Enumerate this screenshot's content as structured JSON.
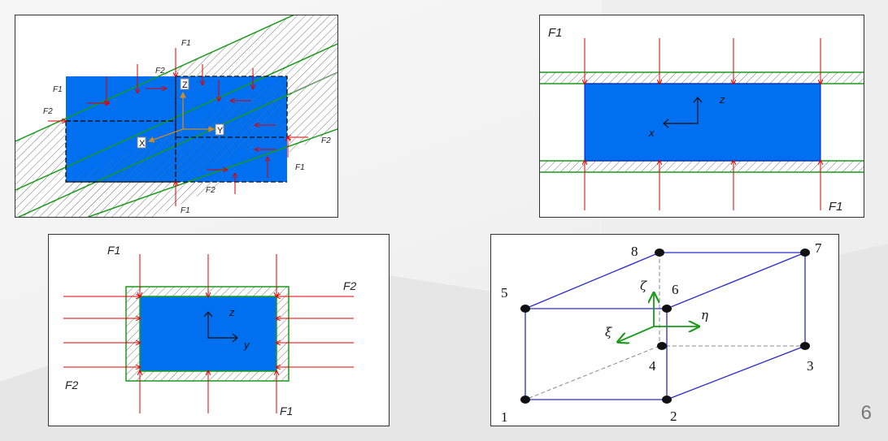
{
  "panel1": {
    "labels": {
      "f1_top": "F1",
      "f2_top": "F2",
      "f1_left": "F1",
      "f2_left": "F2",
      "f2_right": "F2",
      "f1_right": "F1",
      "f2_bottom": "F2",
      "f1_bottom": "F1"
    },
    "axes": {
      "z": "Z",
      "y": "Y",
      "x": "X"
    }
  },
  "panel2": {
    "labels": {
      "f1_top": "F1",
      "f1_bottom": "F1"
    },
    "axes": {
      "z": "z",
      "x": "x"
    }
  },
  "panel3": {
    "labels": {
      "f1_top": "F1",
      "f2_right": "F2",
      "f2_left": "F2",
      "f1_bottom": "F1"
    },
    "axes": {
      "z": "z",
      "y": "y"
    }
  },
  "panel4": {
    "nodes": {
      "n1": "1",
      "n2": "2",
      "n3": "3",
      "n4": "4",
      "n5": "5",
      "n6": "6",
      "n7": "7",
      "n8": "8"
    },
    "axes": {
      "zeta": "ζ",
      "eta": "η",
      "xi": "ξ"
    }
  },
  "slide": {
    "number": "6"
  },
  "colors": {
    "fill_blue": "#0070f0",
    "arrow_red": "#e00000",
    "line_green": "#1a9a1a",
    "edge_blue": "#2a2ad0",
    "axis_green": "#1a9a1a"
  }
}
